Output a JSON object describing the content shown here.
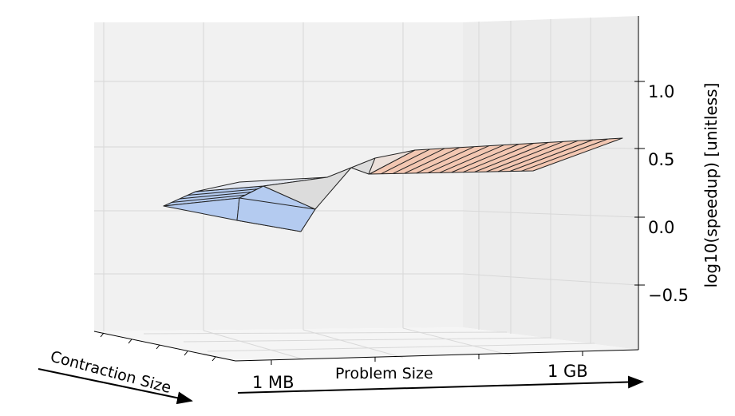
{
  "chart_data": {
    "type": "surface3d",
    "title": "",
    "xlabel": "Problem Size",
    "ylabel": "Contraction Size",
    "zlabel": "log10(speedup) [unitless]",
    "x_tick_labels": [
      "1 MB",
      "1 GB"
    ],
    "z_ticks": [
      1.0,
      0.5,
      0.0,
      -0.5
    ],
    "z_tick_labels": [
      "1.0",
      "0.5",
      "0.0",
      "−0.5"
    ],
    "zlim": [
      -0.75,
      1.25
    ],
    "grid": true,
    "colormap": [
      "#b4cbf0",
      "#dcdcdc",
      "#f3c7b2"
    ],
    "surface": [
      {
        "x": 0.0,
        "y": 1.0,
        "z": 0.06
      },
      {
        "x": 0.0,
        "y": 0.0,
        "z": 0.04
      },
      {
        "x": 0.3,
        "y": 0.0,
        "z": 0.28
      },
      {
        "x": 0.35,
        "y": 1.0,
        "z": 0.38
      },
      {
        "x": 0.45,
        "y": 0.5,
        "z": 0.44
      },
      {
        "x": 1.0,
        "y": 0.0,
        "z": 0.42
      },
      {
        "x": 1.0,
        "y": 1.0,
        "z": 0.62
      }
    ]
  }
}
